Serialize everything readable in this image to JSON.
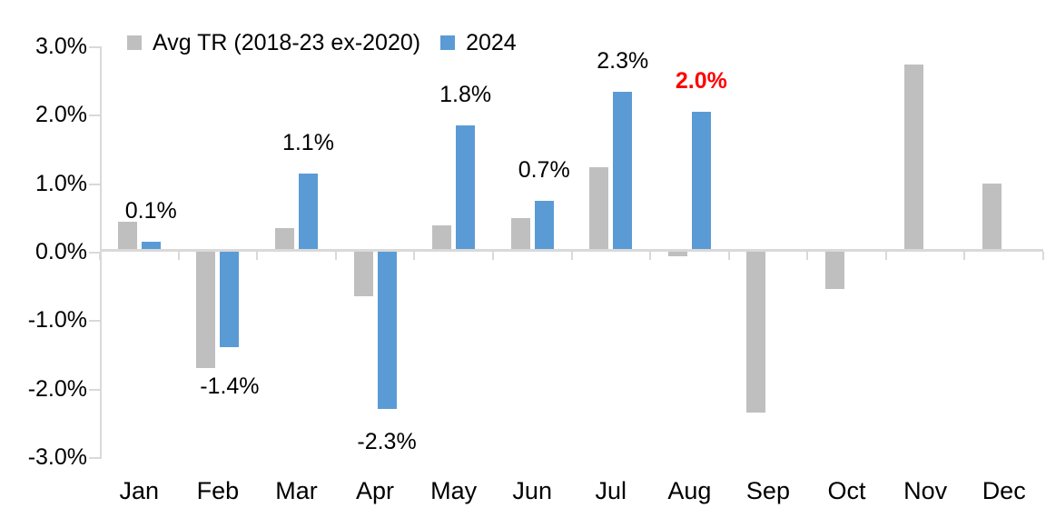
{
  "chart_data": {
    "type": "bar",
    "title": "",
    "xlabel": "",
    "ylabel": "",
    "categories": [
      "Jan",
      "Feb",
      "Mar",
      "Apr",
      "May",
      "Jun",
      "Jul",
      "Aug",
      "Sep",
      "Oct",
      "Nov",
      "Dec"
    ],
    "series": [
      {
        "name": "Avg TR (2018-23 ex-2020)",
        "color": "#bfbfbf",
        "values": [
          0.4,
          -1.7,
          0.3,
          -0.65,
          0.35,
          0.45,
          1.2,
          -0.07,
          -2.35,
          -0.55,
          2.7,
          0.95
        ]
      },
      {
        "name": "2024",
        "color": "#5b9bd5",
        "values": [
          0.1,
          -1.4,
          1.1,
          -2.3,
          1.8,
          0.7,
          2.3,
          2.0,
          null,
          null,
          null,
          null
        ]
      }
    ],
    "data_labels": [
      {
        "text": "0.1%",
        "color": "#000000",
        "bold": false
      },
      {
        "text": "-1.4%",
        "color": "#000000",
        "bold": false
      },
      {
        "text": "1.1%",
        "color": "#000000",
        "bold": false
      },
      {
        "text": "-2.3%",
        "color": "#000000",
        "bold": false
      },
      {
        "text": "1.8%",
        "color": "#000000",
        "bold": false
      },
      {
        "text": "0.7%",
        "color": "#000000",
        "bold": false
      },
      {
        "text": "2.3%",
        "color": "#000000",
        "bold": false
      },
      {
        "text": "2.0%",
        "color": "#ff0000",
        "bold": true
      },
      null,
      null,
      null,
      null
    ],
    "y_axis": {
      "tick_labels": [
        "3.0%",
        "2.0%",
        "1.0%",
        "0.0%",
        "-1.0%",
        "-2.0%",
        "-3.0%"
      ],
      "min": -3.0,
      "max": 3.0,
      "step": 1.0
    },
    "legend": {
      "position": "top",
      "entries": [
        {
          "label": "Avg TR (2018-23 ex-2020)",
          "color": "#bfbfbf"
        },
        {
          "label": "2024",
          "color": "#5b9bd5"
        }
      ]
    },
    "grid": "off",
    "axis_color": "#d9d9d9",
    "text_color": "#000000",
    "background": "#ffffff"
  }
}
